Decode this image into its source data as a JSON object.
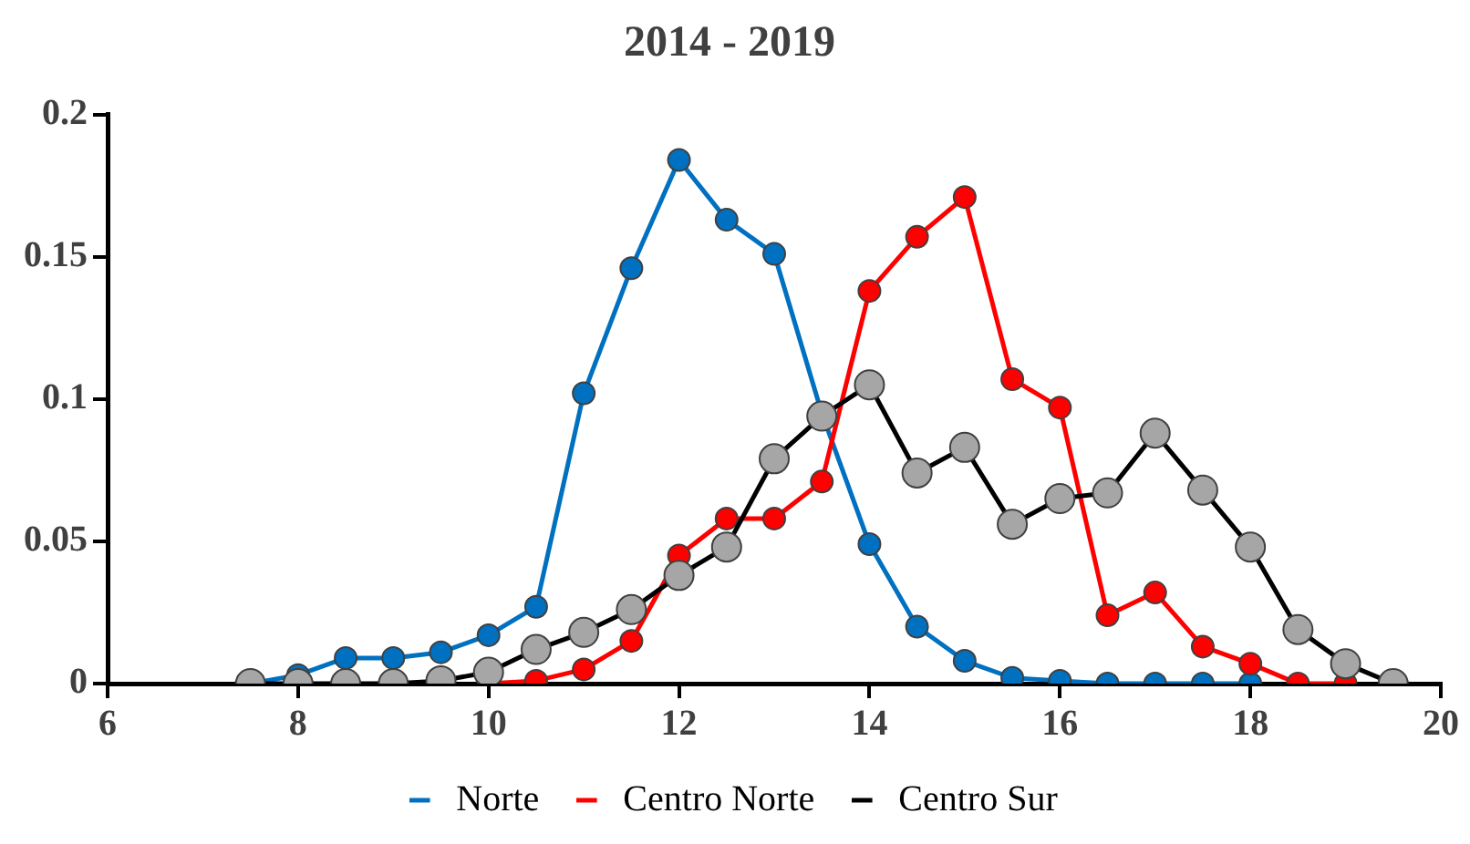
{
  "chart_data": {
    "type": "line",
    "title": "2014 - 2019",
    "xlim": [
      6,
      20
    ],
    "xticks": [
      6,
      8,
      10,
      12,
      14,
      16,
      18,
      20
    ],
    "ylim": [
      0,
      0.2
    ],
    "yticks": [
      0,
      0.05,
      0.1,
      0.15,
      0.2
    ],
    "grid": false,
    "legend": "bottom",
    "marker": "circle",
    "line_style": "solid",
    "series": [
      {
        "name": "Norte",
        "color": "#0070c0",
        "x": [
          7.5,
          8,
          8.5,
          9,
          9.5,
          10,
          10.5,
          11,
          11.5,
          12,
          12.5,
          13,
          13.5,
          14,
          14.5,
          15,
          15.5,
          16,
          16.5,
          17,
          17.5,
          18
        ],
        "values": [
          0,
          0.003,
          0.009,
          0.009,
          0.011,
          0.017,
          0.027,
          0.102,
          0.146,
          0.184,
          0.163,
          0.151,
          0.095,
          0.049,
          0.02,
          0.008,
          0.002,
          0.001,
          0,
          0,
          0,
          0
        ]
      },
      {
        "name": "Centro Norte",
        "color": "#ff0000",
        "x": [
          10,
          10.5,
          11,
          11.5,
          12,
          12.5,
          13,
          13.5,
          14,
          14.5,
          15,
          15.5,
          16,
          16.5,
          17,
          17.5,
          18,
          18.5,
          19
        ],
        "values": [
          0,
          0.001,
          0.005,
          0.015,
          0.045,
          0.058,
          0.058,
          0.071,
          0.138,
          0.157,
          0.171,
          0.107,
          0.097,
          0.024,
          0.032,
          0.013,
          0.007,
          0,
          0
        ]
      },
      {
        "name": "Centro Sur",
        "color": "#000000",
        "x": [
          7.5,
          8,
          8.5,
          9,
          9.5,
          10,
          10.5,
          11,
          11.5,
          12,
          12.5,
          13,
          13.5,
          14,
          14.5,
          15,
          15.5,
          16,
          16.5,
          17,
          17.5,
          18,
          18.5,
          19,
          19.5
        ],
        "values": [
          0,
          0,
          0,
          0,
          0.001,
          0.004,
          0.012,
          0.018,
          0.026,
          0.038,
          0.048,
          0.079,
          0.094,
          0.105,
          0.074,
          0.083,
          0.056,
          0.065,
          0.067,
          0.088,
          0.068,
          0.048,
          0.019,
          0.007,
          0
        ]
      }
    ]
  }
}
